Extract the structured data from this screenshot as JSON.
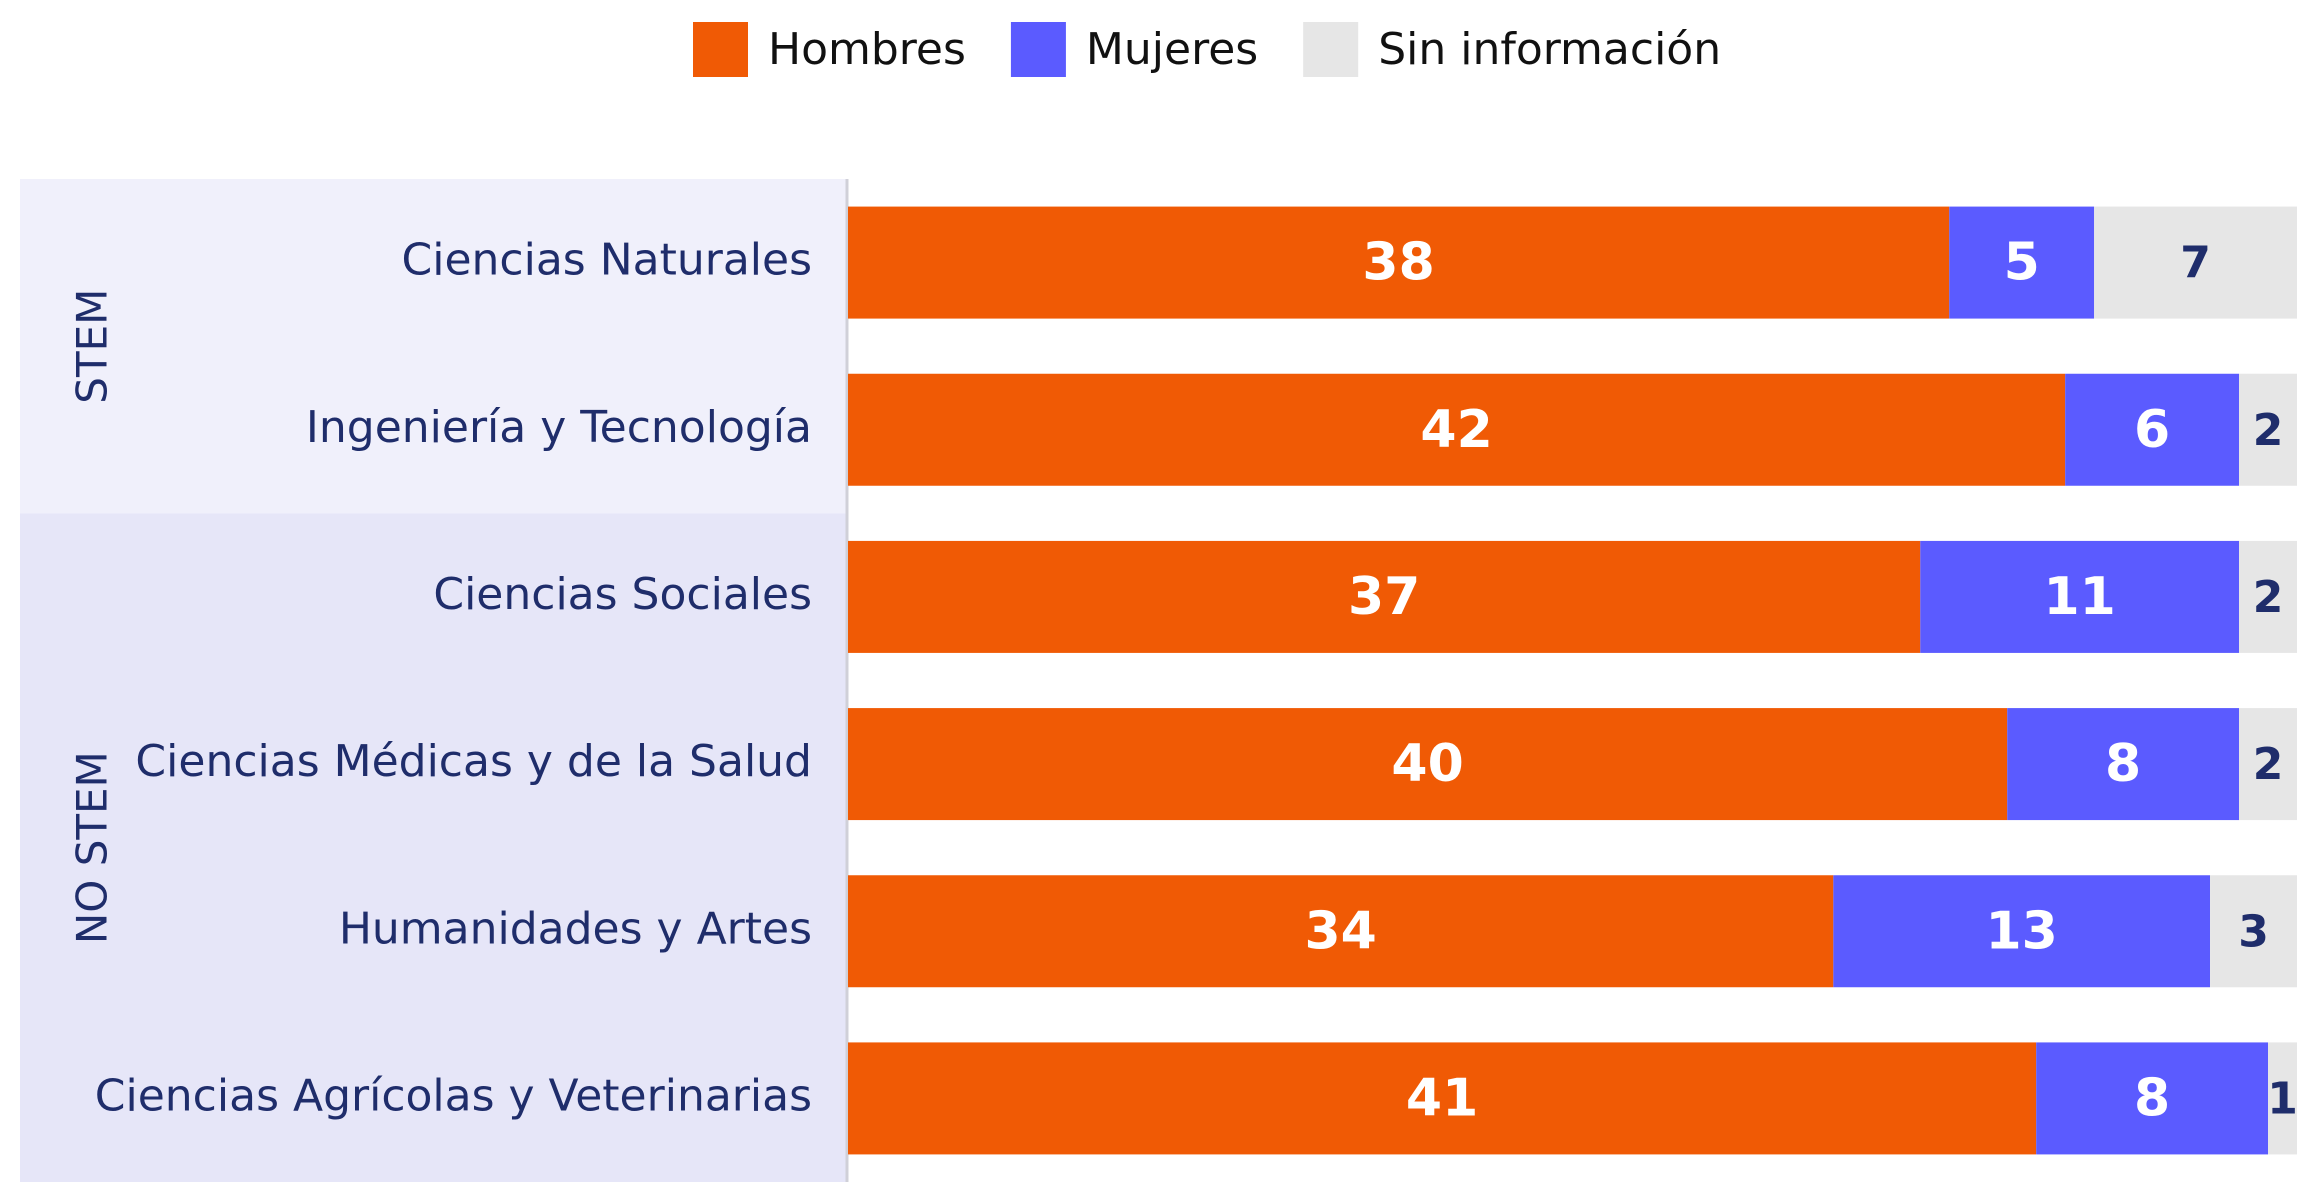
{
  "chart_data": {
    "type": "stacked_bar_horizontal",
    "groups": [
      {
        "name": "STEM",
        "categories": [
          "Ciencias Naturales",
          "Ingeniería y Tecnología"
        ]
      },
      {
        "name": "NO STEM",
        "categories": [
          "Ciencias Sociales",
          "Ciencias Médicas y de la Salud",
          "Humanidades y Artes",
          "Ciencias Agrícolas y Veterinarias"
        ]
      }
    ],
    "series": [
      {
        "name": "Hombres",
        "color": "#f05a05",
        "values": [
          38,
          42,
          37,
          40,
          34,
          41
        ]
      },
      {
        "name": "Mujeres",
        "color": "#5b5bff",
        "values": [
          5,
          6,
          11,
          8,
          13,
          8
        ]
      },
      {
        "name": "Sin información",
        "color": "#e6e6e6",
        "values": [
          7,
          2,
          2,
          2,
          3,
          1
        ]
      }
    ],
    "xlim": [
      0,
      50
    ],
    "legend": "top"
  }
}
